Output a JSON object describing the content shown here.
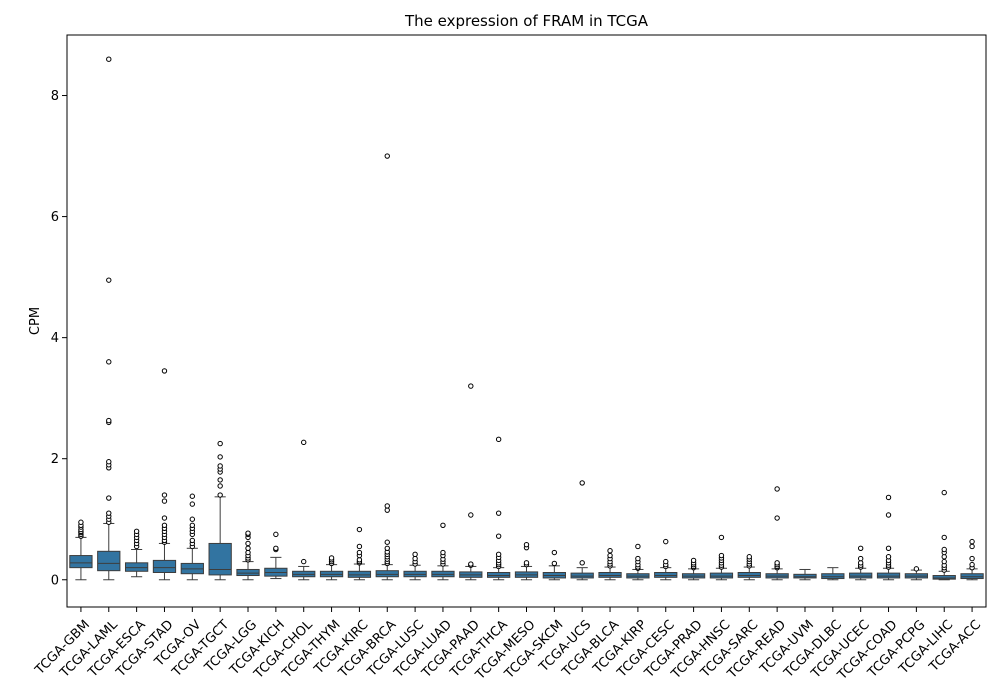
{
  "chart_data": {
    "type": "box",
    "title": "The expression of FRAM in TCGA",
    "xlabel": "",
    "ylabel": "CPM",
    "ylim": [
      -0.45,
      9.0
    ],
    "yticks": [
      0,
      2,
      4,
      6,
      8
    ],
    "grid": false,
    "legend": "none",
    "box_color": "#3274a1",
    "categories": [
      "TCGA-GBM",
      "TCGA-LAML",
      "TCGA-ESCA",
      "TCGA-STAD",
      "TCGA-OV",
      "TCGA-TGCT",
      "TCGA-LGG",
      "TCGA-KICH",
      "TCGA-CHOL",
      "TCGA-THYM",
      "TCGA-KIRC",
      "TCGA-BRCA",
      "TCGA-LUSC",
      "TCGA-LUAD",
      "TCGA-PAAD",
      "TCGA-THCA",
      "TCGA-MESO",
      "TCGA-SKCM",
      "TCGA-UCS",
      "TCGA-BLCA",
      "TCGA-KIRP",
      "TCGA-CESC",
      "TCGA-PRAD",
      "TCGA-HNSC",
      "TCGA-SARC",
      "TCGA-READ",
      "TCGA-UVM",
      "TCGA-DLBC",
      "TCGA-UCEC",
      "TCGA-COAD",
      "TCGA-PCPG",
      "TCGA-LIHC",
      "TCGA-ACC"
    ],
    "boxes": [
      {
        "whislo": 0.0,
        "q1": 0.2,
        "med": 0.28,
        "q3": 0.4,
        "whishi": 0.7,
        "fliers": [
          0.72,
          0.75,
          0.78,
          0.8,
          0.83,
          0.87,
          0.9,
          0.95
        ]
      },
      {
        "whislo": 0.0,
        "q1": 0.15,
        "med": 0.27,
        "q3": 0.47,
        "whishi": 0.93,
        "fliers": [
          0.95,
          1.0,
          1.05,
          1.1,
          1.35,
          1.85,
          1.9,
          1.95,
          2.6,
          2.63,
          3.6,
          4.95,
          8.6
        ]
      },
      {
        "whislo": 0.05,
        "q1": 0.14,
        "med": 0.2,
        "q3": 0.28,
        "whishi": 0.5,
        "fliers": [
          0.55,
          0.6,
          0.65,
          0.7,
          0.75,
          0.8
        ]
      },
      {
        "whislo": 0.0,
        "q1": 0.12,
        "med": 0.2,
        "q3": 0.32,
        "whishi": 0.6,
        "fliers": [
          0.62,
          0.65,
          0.7,
          0.75,
          0.8,
          0.85,
          0.9,
          1.02,
          1.3,
          1.4,
          3.45
        ]
      },
      {
        "whislo": 0.0,
        "q1": 0.1,
        "med": 0.18,
        "q3": 0.27,
        "whishi": 0.52,
        "fliers": [
          0.55,
          0.6,
          0.65,
          0.75,
          0.8,
          0.85,
          0.9,
          1.0,
          1.25,
          1.38
        ]
      },
      {
        "whislo": 0.0,
        "q1": 0.08,
        "med": 0.17,
        "q3": 0.6,
        "whishi": 1.37,
        "fliers": [
          1.4,
          1.55,
          1.65,
          1.78,
          1.83,
          1.88,
          2.03,
          2.25
        ]
      },
      {
        "whislo": 0.0,
        "q1": 0.07,
        "med": 0.11,
        "q3": 0.17,
        "whishi": 0.3,
        "fliers": [
          0.33,
          0.36,
          0.4,
          0.45,
          0.52,
          0.6,
          0.7,
          0.75,
          0.77
        ]
      },
      {
        "whislo": 0.02,
        "q1": 0.06,
        "med": 0.12,
        "q3": 0.19,
        "whishi": 0.37,
        "fliers": [
          0.5,
          0.52,
          0.75
        ]
      },
      {
        "whislo": 0.0,
        "q1": 0.05,
        "med": 0.09,
        "q3": 0.14,
        "whishi": 0.22,
        "fliers": [
          0.3,
          2.27
        ]
      },
      {
        "whislo": 0.0,
        "q1": 0.05,
        "med": 0.09,
        "q3": 0.14,
        "whishi": 0.25,
        "fliers": [
          0.27,
          0.3,
          0.33,
          0.36
        ]
      },
      {
        "whislo": 0.0,
        "q1": 0.04,
        "med": 0.08,
        "q3": 0.14,
        "whishi": 0.26,
        "fliers": [
          0.28,
          0.3,
          0.33,
          0.4,
          0.45,
          0.55,
          0.83
        ]
      },
      {
        "whislo": 0.0,
        "q1": 0.05,
        "med": 0.09,
        "q3": 0.15,
        "whishi": 0.25,
        "fliers": [
          0.27,
          0.3,
          0.34,
          0.38,
          0.42,
          0.46,
          0.52,
          0.62,
          1.15,
          1.22,
          7.0
        ]
      },
      {
        "whislo": 0.0,
        "q1": 0.05,
        "med": 0.09,
        "q3": 0.14,
        "whishi": 0.24,
        "fliers": [
          0.26,
          0.3,
          0.35,
          0.42
        ]
      },
      {
        "whislo": 0.0,
        "q1": 0.05,
        "med": 0.09,
        "q3": 0.14,
        "whishi": 0.23,
        "fliers": [
          0.26,
          0.3,
          0.34,
          0.4,
          0.45,
          0.9
        ]
      },
      {
        "whislo": 0.0,
        "q1": 0.04,
        "med": 0.08,
        "q3": 0.13,
        "whishi": 0.22,
        "fliers": [
          0.24,
          0.26,
          1.07,
          3.2
        ]
      },
      {
        "whislo": 0.0,
        "q1": 0.04,
        "med": 0.07,
        "q3": 0.12,
        "whishi": 0.2,
        "fliers": [
          0.22,
          0.25,
          0.28,
          0.32,
          0.37,
          0.42,
          0.72,
          1.1,
          2.32
        ]
      },
      {
        "whislo": 0.0,
        "q1": 0.04,
        "med": 0.08,
        "q3": 0.13,
        "whishi": 0.22,
        "fliers": [
          0.25,
          0.28,
          0.53,
          0.58
        ]
      },
      {
        "whislo": 0.0,
        "q1": 0.03,
        "med": 0.07,
        "q3": 0.12,
        "whishi": 0.23,
        "fliers": [
          0.27,
          0.45
        ]
      },
      {
        "whislo": 0.0,
        "q1": 0.03,
        "med": 0.06,
        "q3": 0.11,
        "whishi": 0.2,
        "fliers": [
          0.28,
          1.6
        ]
      },
      {
        "whislo": 0.0,
        "q1": 0.04,
        "med": 0.07,
        "q3": 0.12,
        "whishi": 0.21,
        "fliers": [
          0.23,
          0.26,
          0.3,
          0.35,
          0.4,
          0.48
        ]
      },
      {
        "whislo": 0.0,
        "q1": 0.03,
        "med": 0.06,
        "q3": 0.1,
        "whishi": 0.17,
        "fliers": [
          0.19,
          0.21,
          0.25,
          0.3,
          0.35,
          0.55
        ]
      },
      {
        "whislo": 0.0,
        "q1": 0.04,
        "med": 0.07,
        "q3": 0.12,
        "whishi": 0.2,
        "fliers": [
          0.22,
          0.25,
          0.3,
          0.63
        ]
      },
      {
        "whislo": 0.0,
        "q1": 0.03,
        "med": 0.06,
        "q3": 0.1,
        "whishi": 0.18,
        "fliers": [
          0.2,
          0.22,
          0.25,
          0.28,
          0.32
        ]
      },
      {
        "whislo": 0.0,
        "q1": 0.03,
        "med": 0.06,
        "q3": 0.11,
        "whishi": 0.19,
        "fliers": [
          0.21,
          0.24,
          0.28,
          0.32,
          0.36,
          0.4,
          0.7
        ]
      },
      {
        "whislo": 0.0,
        "q1": 0.04,
        "med": 0.07,
        "q3": 0.12,
        "whishi": 0.21,
        "fliers": [
          0.23,
          0.26,
          0.3,
          0.34,
          0.38
        ]
      },
      {
        "whislo": 0.0,
        "q1": 0.03,
        "med": 0.06,
        "q3": 0.1,
        "whishi": 0.18,
        "fliers": [
          0.2,
          0.22,
          0.25,
          0.28,
          1.02,
          1.5
        ]
      },
      {
        "whislo": 0.0,
        "q1": 0.03,
        "med": 0.05,
        "q3": 0.09,
        "whishi": 0.17,
        "fliers": []
      },
      {
        "whislo": 0.0,
        "q1": 0.02,
        "med": 0.05,
        "q3": 0.1,
        "whishi": 0.2,
        "fliers": []
      },
      {
        "whislo": 0.0,
        "q1": 0.03,
        "med": 0.06,
        "q3": 0.11,
        "whishi": 0.19,
        "fliers": [
          0.21,
          0.24,
          0.28,
          0.35,
          0.52
        ]
      },
      {
        "whislo": 0.0,
        "q1": 0.03,
        "med": 0.06,
        "q3": 0.11,
        "whishi": 0.19,
        "fliers": [
          0.21,
          0.24,
          0.28,
          0.32,
          0.38,
          0.52,
          1.07,
          1.36
        ]
      },
      {
        "whislo": 0.0,
        "q1": 0.03,
        "med": 0.06,
        "q3": 0.1,
        "whishi": 0.16,
        "fliers": [
          0.18
        ]
      },
      {
        "whislo": 0.0,
        "q1": 0.01,
        "med": 0.03,
        "q3": 0.07,
        "whishi": 0.14,
        "fliers": [
          0.16,
          0.2,
          0.24,
          0.3,
          0.38,
          0.45,
          0.5,
          0.7,
          1.44
        ]
      },
      {
        "whislo": 0.0,
        "q1": 0.02,
        "med": 0.05,
        "q3": 0.1,
        "whishi": 0.18,
        "fliers": [
          0.2,
          0.25,
          0.35,
          0.55,
          0.63
        ]
      }
    ]
  }
}
